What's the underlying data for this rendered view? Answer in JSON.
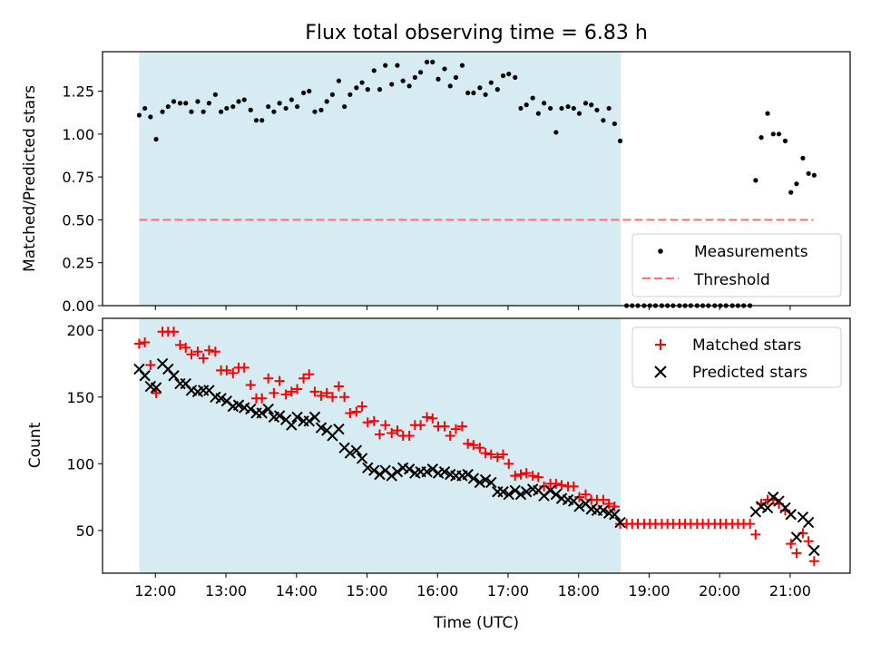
{
  "chart_data": [
    {
      "type": "scatter",
      "title": "Flux total observing time = 6.83 h",
      "xlabel": "",
      "ylabel": "Matched/Predicted stars",
      "ylim": [
        0,
        1.48
      ],
      "yticks": [
        "0.00",
        "0.25",
        "0.50",
        "0.75",
        "1.00",
        "1.25"
      ],
      "shaded_span_hours": [
        11.77,
        18.6
      ],
      "shaded_color": "#add8e6",
      "threshold": {
        "label": "Threshold",
        "value": 0.5,
        "x_range": [
          11.77,
          21.33
        ],
        "color": "#ff7070"
      },
      "series": [
        {
          "name": "Measurements",
          "marker": "dot",
          "color": "#000000",
          "x": [
            11.77,
            11.85,
            11.93,
            12.01,
            12.1,
            12.18,
            12.26,
            12.35,
            12.43,
            12.51,
            12.6,
            12.68,
            12.76,
            12.85,
            12.93,
            13.01,
            13.1,
            13.18,
            13.26,
            13.35,
            13.43,
            13.51,
            13.6,
            13.68,
            13.76,
            13.85,
            13.93,
            14.01,
            14.1,
            14.18,
            14.26,
            14.35,
            14.43,
            14.51,
            14.6,
            14.68,
            14.76,
            14.85,
            14.93,
            15.01,
            15.1,
            15.18,
            15.26,
            15.35,
            15.43,
            15.51,
            15.6,
            15.68,
            15.76,
            15.85,
            15.93,
            16.01,
            16.1,
            16.18,
            16.26,
            16.35,
            16.43,
            16.51,
            16.6,
            16.68,
            16.76,
            16.85,
            16.93,
            17.01,
            17.1,
            17.18,
            17.26,
            17.35,
            17.43,
            17.51,
            17.6,
            17.68,
            17.76,
            17.85,
            17.93,
            18.01,
            18.1,
            18.18,
            18.26,
            18.35,
            18.43,
            18.51,
            18.59,
            18.68,
            18.76,
            18.84,
            18.93,
            19.01,
            19.09,
            19.18,
            19.26,
            19.34,
            19.43,
            19.51,
            19.59,
            19.68,
            19.76,
            19.84,
            19.93,
            20.01,
            20.09,
            20.18,
            20.26,
            20.34,
            20.43,
            20.51,
            20.59,
            20.68,
            20.76,
            20.84,
            20.93,
            21.01,
            21.09,
            21.18,
            21.26,
            21.34
          ],
          "y": [
            1.11,
            1.15,
            1.1,
            0.97,
            1.13,
            1.16,
            1.19,
            1.18,
            1.18,
            1.13,
            1.19,
            1.13,
            1.18,
            1.23,
            1.13,
            1.15,
            1.16,
            1.19,
            1.2,
            1.14,
            1.08,
            1.08,
            1.16,
            1.13,
            1.18,
            1.15,
            1.2,
            1.16,
            1.24,
            1.25,
            1.13,
            1.14,
            1.19,
            1.23,
            1.31,
            1.16,
            1.23,
            1.27,
            1.3,
            1.26,
            1.37,
            1.26,
            1.4,
            1.29,
            1.4,
            1.31,
            1.28,
            1.33,
            1.36,
            1.42,
            1.42,
            1.32,
            1.38,
            1.28,
            1.33,
            1.4,
            1.24,
            1.24,
            1.27,
            1.23,
            1.3,
            1.26,
            1.34,
            1.35,
            1.33,
            1.15,
            1.17,
            1.21,
            1.12,
            1.18,
            1.15,
            1.01,
            1.15,
            1.16,
            1.15,
            1.12,
            1.18,
            1.17,
            1.14,
            1.08,
            1.15,
            1.06,
            0.96,
            0.0,
            0.0,
            0.0,
            0.0,
            0.0,
            0.0,
            0.0,
            0.0,
            0.0,
            0.0,
            0.0,
            0.0,
            0.0,
            0.0,
            0.0,
            0.0,
            0.0,
            0.0,
            0.0,
            0.0,
            0.0,
            0.0,
            0.73,
            0.98,
            1.12,
            1.0,
            1.0,
            0.96,
            0.66,
            0.71,
            0.86,
            0.77,
            0.76
          ]
        }
      ],
      "legend": [
        "Measurements",
        "Threshold"
      ],
      "legend_position": "lower-right"
    },
    {
      "type": "scatter",
      "title": "",
      "xlabel": "Time (UTC)",
      "ylabel": "Count",
      "xlim_hours": [
        11.25,
        21.85
      ],
      "xticks": [
        "12:00",
        "13:00",
        "14:00",
        "15:00",
        "16:00",
        "17:00",
        "18:00",
        "19:00",
        "20:00",
        "21:00"
      ],
      "ylim": [
        18,
        209
      ],
      "yticks": [
        "50",
        "100",
        "150",
        "200"
      ],
      "shaded_span_hours": [
        11.77,
        18.6
      ],
      "series": [
        {
          "name": "Matched stars",
          "marker": "plus",
          "color": "#ff0000",
          "x": [
            11.77,
            11.85,
            11.93,
            12.01,
            12.1,
            12.18,
            12.26,
            12.35,
            12.43,
            12.51,
            12.6,
            12.68,
            12.76,
            12.85,
            12.93,
            13.01,
            13.1,
            13.18,
            13.26,
            13.35,
            13.43,
            13.51,
            13.6,
            13.68,
            13.76,
            13.85,
            13.93,
            14.01,
            14.1,
            14.18,
            14.26,
            14.35,
            14.43,
            14.51,
            14.6,
            14.68,
            14.76,
            14.85,
            14.93,
            15.01,
            15.1,
            15.18,
            15.26,
            15.35,
            15.43,
            15.51,
            15.6,
            15.68,
            15.76,
            15.85,
            15.93,
            16.01,
            16.1,
            16.18,
            16.26,
            16.35,
            16.43,
            16.51,
            16.6,
            16.68,
            16.76,
            16.85,
            16.93,
            17.01,
            17.1,
            17.18,
            17.26,
            17.35,
            17.43,
            17.51,
            17.6,
            17.68,
            17.76,
            17.85,
            17.93,
            18.01,
            18.1,
            18.18,
            18.26,
            18.35,
            18.43,
            18.51,
            18.59,
            18.68,
            18.76,
            18.84,
            18.93,
            19.01,
            19.09,
            19.18,
            19.26,
            19.34,
            19.43,
            19.51,
            19.59,
            19.68,
            19.76,
            19.84,
            19.93,
            20.01,
            20.09,
            20.18,
            20.26,
            20.34,
            20.43,
            20.51,
            20.59,
            20.68,
            20.76,
            20.84,
            20.93,
            21.01,
            21.09,
            21.18,
            21.26,
            21.34
          ],
          "y": [
            190,
            191,
            174,
            153,
            199,
            199,
            199,
            189,
            187,
            182,
            184,
            179,
            185,
            184,
            170,
            170,
            168,
            172,
            172,
            159,
            149,
            149,
            164,
            153,
            162,
            152,
            154,
            156,
            164,
            167,
            154,
            151,
            153,
            150,
            158,
            150,
            138,
            139,
            143,
            131,
            132,
            122,
            129,
            123,
            125,
            121,
            121,
            129,
            129,
            135,
            134,
            128,
            128,
            121,
            126,
            128,
            115,
            114,
            112,
            108,
            107,
            105,
            107,
            100,
            91,
            92,
            93,
            91,
            90,
            83,
            85,
            85,
            84,
            83,
            83,
            75,
            77,
            73,
            73,
            73,
            70,
            68,
            55,
            55,
            55,
            55,
            55,
            55,
            55,
            55,
            55,
            55,
            55,
            55,
            55,
            55,
            55,
            55,
            55,
            55,
            55,
            55,
            55,
            55,
            55,
            47,
            70,
            73,
            73,
            70,
            65,
            40,
            33,
            48,
            42,
            27
          ]
        },
        {
          "name": "Predicted stars",
          "marker": "x",
          "color": "#000000",
          "x": [
            11.77,
            11.85,
            11.93,
            12.01,
            12.1,
            12.18,
            12.26,
            12.35,
            12.43,
            12.51,
            12.6,
            12.68,
            12.76,
            12.85,
            12.93,
            13.01,
            13.1,
            13.18,
            13.26,
            13.35,
            13.43,
            13.51,
            13.6,
            13.68,
            13.76,
            13.85,
            13.93,
            14.01,
            14.1,
            14.18,
            14.26,
            14.35,
            14.43,
            14.51,
            14.6,
            14.68,
            14.76,
            14.85,
            14.93,
            15.01,
            15.1,
            15.18,
            15.26,
            15.35,
            15.43,
            15.51,
            15.6,
            15.68,
            15.76,
            15.85,
            15.93,
            16.01,
            16.1,
            16.18,
            16.26,
            16.35,
            16.43,
            16.51,
            16.6,
            16.68,
            16.76,
            16.85,
            16.93,
            17.01,
            17.1,
            17.18,
            17.26,
            17.35,
            17.43,
            17.51,
            17.6,
            17.68,
            17.76,
            17.85,
            17.93,
            18.01,
            18.1,
            18.18,
            18.26,
            18.35,
            18.43,
            18.51,
            18.59,
            20.51,
            20.59,
            20.68,
            20.76,
            20.84,
            20.93,
            21.01,
            21.09,
            21.18,
            21.26,
            21.34
          ],
          "y": [
            171,
            166,
            158,
            157,
            175,
            171,
            166,
            160,
            160,
            155,
            154,
            155,
            155,
            150,
            149,
            147,
            143,
            144,
            142,
            141,
            138,
            138,
            141,
            135,
            136,
            133,
            129,
            135,
            132,
            132,
            135,
            127,
            125,
            121,
            126,
            112,
            108,
            110,
            104,
            97,
            95,
            92,
            95,
            91,
            94,
            97,
            96,
            93,
            94,
            94,
            96,
            93,
            94,
            92,
            91,
            91,
            92,
            89,
            86,
            88,
            86,
            79,
            79,
            77,
            80,
            77,
            79,
            81,
            80,
            76,
            80,
            77,
            74,
            73,
            72,
            68,
            70,
            66,
            65,
            65,
            63,
            62,
            56,
            64,
            68,
            67,
            75,
            72,
            67,
            62,
            45,
            60,
            56,
            35
          ]
        }
      ],
      "legend": [
        "Matched stars",
        "Predicted stars"
      ],
      "legend_position": "top-right"
    }
  ]
}
